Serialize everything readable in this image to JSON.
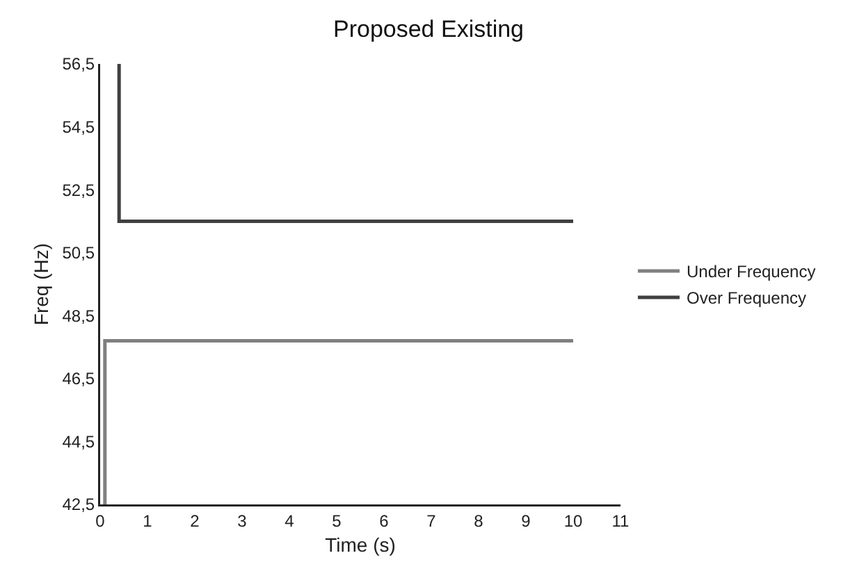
{
  "chart_data": {
    "type": "line",
    "title": "Proposed Existing",
    "xlabel": "Time (s)",
    "ylabel": "Freq (Hz)",
    "series": [
      {
        "name": "Under Frequency",
        "color": "#808080",
        "x": [
          0.1,
          0.1,
          10
        ],
        "values": [
          42.5,
          47.7,
          47.7
        ]
      },
      {
        "name": "Over Frequency",
        "color": "#404040",
        "x": [
          0.4,
          0.4,
          10
        ],
        "values": [
          56.5,
          51.5,
          51.5
        ]
      }
    ],
    "xlim": [
      0,
      11
    ],
    "xticks": [
      0,
      1,
      2,
      3,
      4,
      5,
      6,
      7,
      8,
      9,
      10,
      11
    ],
    "ylim": [
      42.5,
      56.5
    ],
    "yticks": [
      {
        "value": 42.5,
        "label": "42,5"
      },
      {
        "value": 44.5,
        "label": "44,5"
      },
      {
        "value": 46.5,
        "label": "46,5"
      },
      {
        "value": 48.5,
        "label": "48,5"
      },
      {
        "value": 50.5,
        "label": "50,5"
      },
      {
        "value": 52.5,
        "label": "52,5"
      },
      {
        "value": 54.5,
        "label": "54,5"
      },
      {
        "value": 56.5,
        "label": "56,5"
      }
    ],
    "grid": false,
    "legend": "right",
    "marker": "none",
    "line_style": "solid"
  }
}
